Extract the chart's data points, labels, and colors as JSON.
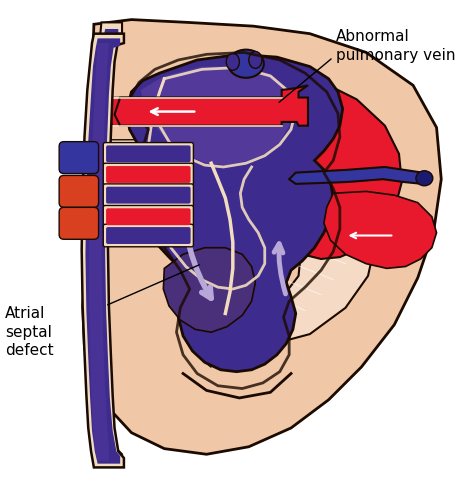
{
  "bg_color": "#ffffff",
  "label1": "Abnormal\npulmonary vein",
  "label2": "Atrial\nseptal\ndefect",
  "dark_navy": "#1a1a6e",
  "deep_purple": "#3d2b8e",
  "mid_purple": "#5b3fa0",
  "dark_purple2": "#4a2f7a",
  "bright_red": "#e8192c",
  "dark_red": "#c0151e",
  "orange_red": "#d94020",
  "peach": "#f0c8a8",
  "light_peach": "#f5dbc5",
  "cream": "#f2dcc0",
  "outline_color": "#1a0a00",
  "arrow_lavender": "#b8a8d8",
  "arrow_lavender2": "#a090c8",
  "white_arrow": "#ffffff",
  "blue_vessel": "#3535a0",
  "mid_blue": "#4545b0"
}
